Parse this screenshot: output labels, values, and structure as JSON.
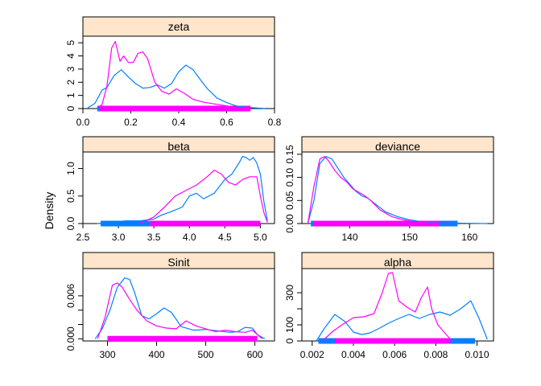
{
  "ylabel": "Density",
  "colors": {
    "strip": "#ffe5cc",
    "chain1": "#0080ff",
    "chain2": "#ff00ff",
    "frame": "#000000"
  },
  "chart_data": [
    {
      "type": "line",
      "title": "zeta",
      "xlim": [
        0.0,
        0.8
      ],
      "ylim": [
        0,
        5.5
      ],
      "xticks": [
        0.0,
        0.2,
        0.4,
        0.6,
        0.8
      ],
      "xtick_labels": [
        "0.0",
        "0.2",
        "0.4",
        "0.6",
        "0.8"
      ],
      "yticks": [
        0,
        1,
        2,
        3,
        4,
        5
      ],
      "ytick_labels": [
        "0",
        "1",
        "2",
        "3",
        "4",
        "5"
      ],
      "series": [
        {
          "x": [
            0.02,
            0.05,
            0.08,
            0.1,
            0.13,
            0.16,
            0.19,
            0.22,
            0.25,
            0.28,
            0.31,
            0.34,
            0.37,
            0.4,
            0.43,
            0.46,
            0.49,
            0.52,
            0.56,
            0.6,
            0.64,
            0.68,
            0.72,
            0.76
          ],
          "y": [
            0.05,
            0.4,
            1.4,
            1.6,
            2.5,
            2.95,
            2.4,
            1.9,
            1.55,
            1.6,
            1.8,
            1.55,
            1.9,
            2.8,
            3.3,
            2.95,
            2.2,
            1.5,
            0.8,
            0.45,
            0.2,
            0.1,
            0.05,
            0.01
          ]
        },
        {
          "x": [
            0.06,
            0.08,
            0.1,
            0.12,
            0.135,
            0.155,
            0.17,
            0.19,
            0.21,
            0.23,
            0.25,
            0.27,
            0.3,
            0.33,
            0.36,
            0.39,
            0.42,
            0.46,
            0.5,
            0.55,
            0.6,
            0.65,
            0.7
          ],
          "y": [
            0.05,
            0.3,
            1.7,
            4.6,
            5.1,
            3.6,
            4.0,
            3.5,
            3.5,
            4.2,
            4.3,
            3.8,
            2.0,
            1.3,
            1.1,
            1.5,
            1.2,
            0.7,
            0.5,
            0.35,
            0.2,
            0.05,
            0.01
          ]
        }
      ],
      "rug": [
        [
          0.06,
          0.68
        ],
        [
          0.07,
          0.7
        ]
      ]
    },
    {
      "type": "line",
      "title": "beta",
      "xlim": [
        2.5,
        5.2
      ],
      "ylim": [
        0,
        1.3
      ],
      "xticks": [
        2.5,
        3.0,
        3.5,
        4.0,
        4.5,
        5.0
      ],
      "xtick_labels": [
        "2.5",
        "3.0",
        "3.5",
        "4.0",
        "4.5",
        "5.0"
      ],
      "yticks": [
        0.0,
        0.5,
        1.0
      ],
      "ytick_labels": [
        "0.0",
        "0.5",
        "1.0"
      ],
      "series": [
        {
          "x": [
            2.7,
            2.9,
            3.1,
            3.3,
            3.5,
            3.6,
            3.75,
            3.9,
            4.0,
            4.1,
            4.2,
            4.35,
            4.5,
            4.6,
            4.7,
            4.75,
            4.8,
            4.85,
            4.9,
            4.95,
            5.0,
            5.05,
            5.1
          ],
          "y": [
            0.0,
            0.02,
            0.05,
            0.05,
            0.08,
            0.15,
            0.22,
            0.3,
            0.5,
            0.55,
            0.45,
            0.55,
            0.8,
            0.9,
            1.1,
            1.22,
            1.2,
            1.15,
            1.2,
            1.1,
            0.9,
            0.4,
            0.05
          ]
        },
        {
          "x": [
            3.3,
            3.5,
            3.65,
            3.8,
            3.95,
            4.1,
            4.25,
            4.35,
            4.45,
            4.55,
            4.65,
            4.75,
            4.85,
            4.95,
            5.0,
            5.05,
            5.1
          ],
          "y": [
            0.0,
            0.12,
            0.3,
            0.5,
            0.6,
            0.7,
            0.85,
            0.97,
            0.9,
            0.75,
            0.7,
            0.8,
            0.85,
            0.85,
            0.5,
            0.2,
            0.02
          ]
        }
      ],
      "rug": [
        [
          2.75,
          3.45
        ],
        [
          3.45,
          5.0
        ]
      ]
    },
    {
      "type": "line",
      "title": "deviance",
      "xlim": [
        132,
        164
      ],
      "ylim": [
        0,
        0.155
      ],
      "xticks": [
        140,
        150,
        160
      ],
      "xtick_labels": [
        "140",
        "150",
        "160"
      ],
      "yticks": [
        0.0,
        0.05,
        0.1,
        0.15
      ],
      "ytick_labels": [
        "0.00",
        "0.05",
        "0.10",
        "0.15"
      ],
      "series": [
        {
          "x": [
            133,
            134,
            135,
            136,
            137,
            138,
            139,
            140,
            141,
            142,
            143,
            144,
            146,
            148,
            150,
            152,
            154,
            157,
            160,
            163
          ],
          "y": [
            0.0,
            0.05,
            0.13,
            0.145,
            0.14,
            0.12,
            0.1,
            0.085,
            0.07,
            0.06,
            0.055,
            0.045,
            0.025,
            0.015,
            0.008,
            0.004,
            0.002,
            0.001,
            0.0005,
            0.0
          ]
        },
        {
          "x": [
            133,
            134,
            135,
            135.8,
            136.5,
            137.5,
            138.5,
            139.5,
            140.5,
            141.5,
            142.5,
            143.5,
            145,
            147,
            149,
            151,
            154,
            157
          ],
          "y": [
            0.0,
            0.08,
            0.14,
            0.145,
            0.135,
            0.115,
            0.1,
            0.09,
            0.075,
            0.068,
            0.06,
            0.05,
            0.03,
            0.015,
            0.008,
            0.003,
            0.001,
            0.0
          ]
        }
      ],
      "rug": [
        [
          133.5,
          158
        ],
        [
          134,
          155
        ]
      ]
    },
    {
      "type": "line",
      "title": "Sinit",
      "xlim": [
        250,
        640
      ],
      "ylim": [
        -0.0003,
        0.0098
      ],
      "xticks": [
        300,
        400,
        500,
        600
      ],
      "xtick_labels": [
        "300",
        "400",
        "500",
        "600"
      ],
      "yticks": [
        0.0,
        0.002,
        0.004,
        0.006
      ],
      "ytick_labels": [
        "0.000",
        "",
        "",
        "0.006"
      ],
      "series": [
        {
          "x": [
            275,
            290,
            305,
            320,
            335,
            345,
            355,
            370,
            385,
            400,
            415,
            430,
            450,
            475,
            500,
            525,
            550,
            565,
            580,
            595,
            605,
            620
          ],
          "y": [
            0.0,
            0.0015,
            0.004,
            0.0072,
            0.0085,
            0.0083,
            0.0065,
            0.0032,
            0.0028,
            0.0035,
            0.0043,
            0.0037,
            0.0017,
            0.0012,
            0.0013,
            0.0011,
            0.0009,
            0.001,
            0.0016,
            0.0015,
            0.0006,
            0.0
          ]
        },
        {
          "x": [
            280,
            295,
            310,
            320,
            330,
            345,
            360,
            380,
            400,
            420,
            440,
            460,
            480,
            500,
            520,
            540,
            560,
            580,
            595,
            605,
            615
          ],
          "y": [
            0.0,
            0.003,
            0.0075,
            0.0078,
            0.0072,
            0.0055,
            0.004,
            0.0025,
            0.0018,
            0.0015,
            0.0014,
            0.0025,
            0.0018,
            0.0014,
            0.001,
            0.0012,
            0.001,
            0.0009,
            0.0012,
            0.0006,
            0.0
          ]
        }
      ],
      "rug": [
        [
          300,
          600
        ],
        [
          300,
          605
        ]
      ]
    },
    {
      "type": "line",
      "title": "alpha",
      "xlim": [
        0.0015,
        0.0108
      ],
      "ylim": [
        0,
        450
      ],
      "xticks": [
        0.002,
        0.004,
        0.006,
        0.008,
        0.01
      ],
      "xtick_labels": [
        "0.002",
        "0.004",
        "0.006",
        "0.008",
        "0.010"
      ],
      "yticks": [
        0,
        100,
        200,
        300
      ],
      "ytick_labels": [
        "0",
        "100",
        "",
        "300"
      ],
      "series": [
        {
          "x": [
            0.0022,
            0.0026,
            0.0031,
            0.0036,
            0.004,
            0.0044,
            0.0048,
            0.0052,
            0.0057,
            0.0062,
            0.0067,
            0.0072,
            0.0077,
            0.0082,
            0.0087,
            0.0092,
            0.0097,
            0.0101,
            0.0105
          ],
          "y": [
            0,
            80,
            165,
            120,
            55,
            40,
            50,
            75,
            110,
            140,
            165,
            140,
            165,
            180,
            160,
            200,
            250,
            140,
            10
          ]
        },
        {
          "x": [
            0.0025,
            0.003,
            0.0035,
            0.004,
            0.0045,
            0.005,
            0.0054,
            0.0057,
            0.0059,
            0.0062,
            0.0066,
            0.007,
            0.0073,
            0.0076,
            0.0078,
            0.0081,
            0.0085,
            0.0088
          ],
          "y": [
            0,
            60,
            105,
            145,
            150,
            170,
            300,
            420,
            425,
            250,
            210,
            180,
            270,
            335,
            200,
            100,
            40,
            0
          ]
        }
      ],
      "rug": [
        [
          0.0023,
          0.0099
        ],
        [
          0.0031,
          0.0087
        ]
      ]
    }
  ]
}
